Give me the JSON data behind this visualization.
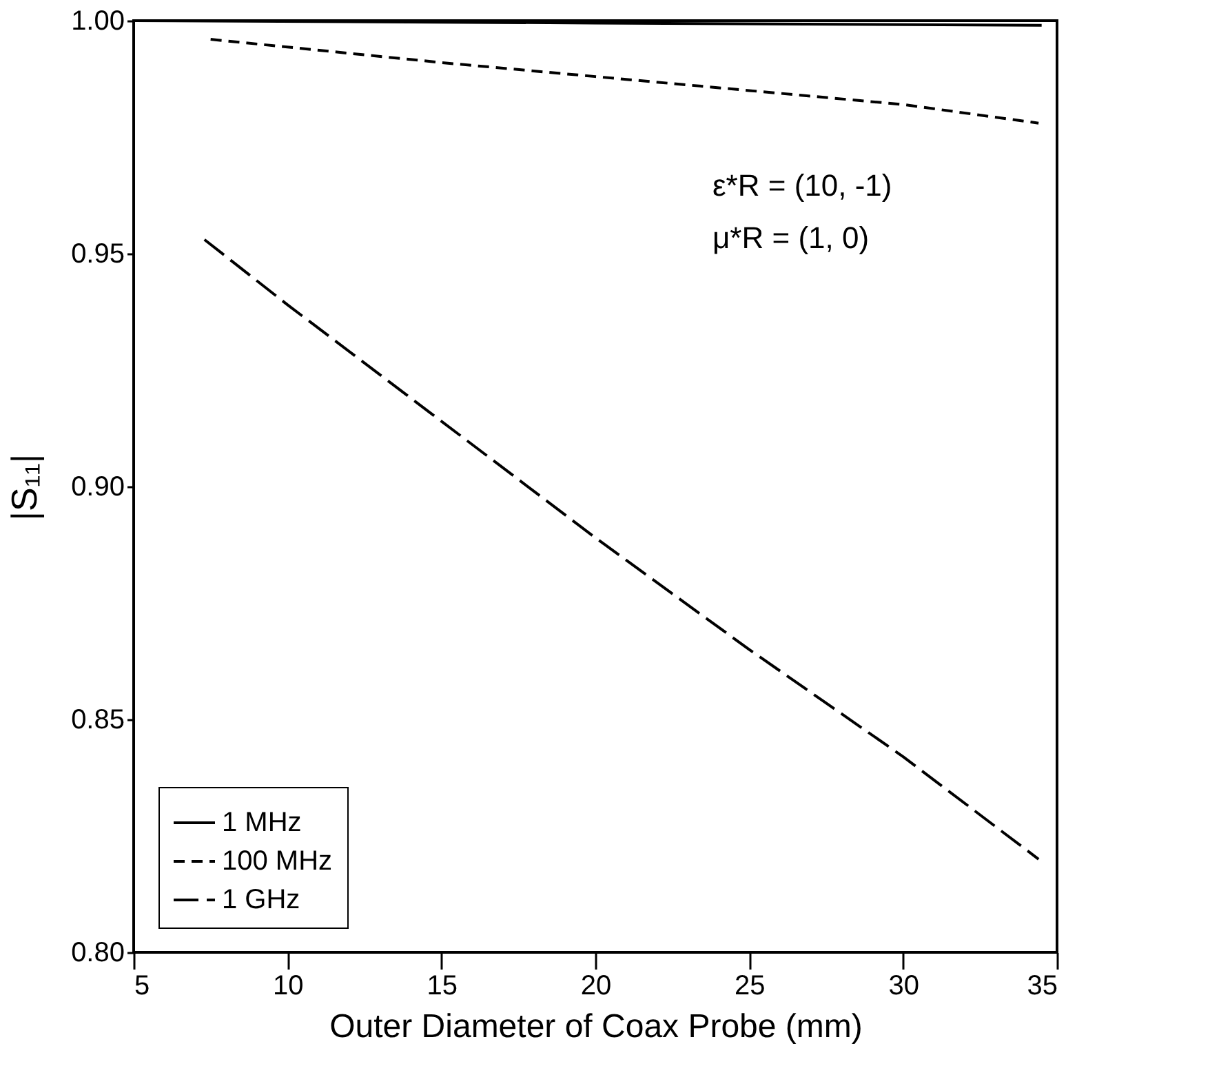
{
  "chart_data": {
    "type": "line",
    "xlabel": "Outer Diameter of Coax Probe (mm)",
    "ylabel": "|S₁₁|",
    "xlim": [
      5,
      35
    ],
    "ylim": [
      0.8,
      1.0
    ],
    "xticks": [
      5,
      10,
      15,
      20,
      25,
      30,
      35
    ],
    "yticks": [
      {
        "value": 0.8,
        "label": "0.80"
      },
      0.85,
      {
        "value": 0.9,
        "label": "0.90"
      },
      0.95,
      {
        "value": 1.0,
        "label": "1.00"
      }
    ],
    "grid": false,
    "legend": "bottom left",
    "annotations": [
      {
        "text": "ε*R = (10, -1)"
      },
      {
        "text": "μ*R = (1, 0)"
      }
    ],
    "series": [
      {
        "name": "1 MHz",
        "color": "#000000",
        "line_style": "solid",
        "x": [
          5,
          20,
          34.5
        ],
        "values": [
          1.0,
          0.9995,
          0.999
        ]
      },
      {
        "name": "100 MHz",
        "color": "#000000",
        "line_style": "dashed",
        "x": [
          7.5,
          15,
          20,
          25,
          30,
          34.4
        ],
        "values": [
          0.996,
          0.991,
          0.988,
          0.985,
          0.982,
          0.978
        ]
      },
      {
        "name": "1 GHz",
        "color": "#000000",
        "line_style": "longdash",
        "x": [
          7.3,
          10,
          15,
          20,
          25,
          30,
          34.4
        ],
        "values": [
          0.953,
          0.939,
          0.914,
          0.889,
          0.865,
          0.842,
          0.82
        ]
      }
    ]
  }
}
